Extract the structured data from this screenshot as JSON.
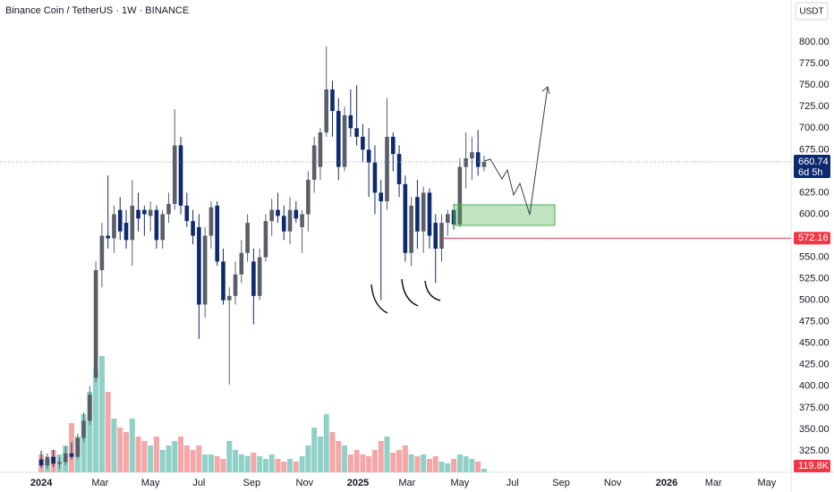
{
  "chart_data": {
    "type": "candlestick",
    "title": "Binance Coin / TetherUS · 1W · BINANCE",
    "currency": "USDT",
    "x": [
      0,
      1,
      2,
      3,
      4,
      5,
      6,
      7,
      8,
      9,
      10,
      11,
      12,
      13,
      14,
      15,
      16,
      17,
      18,
      19,
      20,
      21,
      22,
      23,
      24,
      25,
      26,
      27,
      28,
      29,
      30,
      31,
      32,
      33,
      34,
      35,
      36,
      37,
      38,
      39,
      40,
      41,
      42,
      43,
      44,
      45,
      46,
      47,
      48,
      49,
      50,
      51,
      52,
      53,
      54,
      55,
      56,
      57,
      58,
      59,
      60,
      61,
      62,
      63,
      64,
      65,
      66,
      67,
      68,
      69,
      70,
      71,
      72,
      73
    ],
    "open": [
      315,
      308,
      318,
      310,
      312,
      322,
      318,
      340,
      360,
      410,
      535,
      575,
      572,
      605,
      590,
      570,
      605,
      605,
      598,
      605,
      570,
      600,
      612,
      680,
      610,
      592,
      585,
      495,
      575,
      610,
      545,
      500,
      505,
      530,
      555,
      545,
      505,
      550,
      592,
      605,
      598,
      580,
      605,
      585,
      600,
      640,
      655,
      695,
      745,
      720,
      655,
      715,
      700,
      690,
      675,
      660,
      625,
      615,
      690,
      670,
      635,
      555,
      620,
      580,
      625,
      590,
      560,
      590,
      605,
      588,
      655,
      665,
      672,
      655
    ],
    "high": [
      325,
      322,
      326,
      318,
      330,
      335,
      345,
      370,
      400,
      545,
      590,
      645,
      610,
      620,
      605,
      640,
      625,
      610,
      615,
      610,
      605,
      625,
      722,
      690,
      625,
      605,
      600,
      585,
      615,
      615,
      560,
      515,
      545,
      570,
      600,
      560,
      560,
      600,
      618,
      625,
      610,
      620,
      615,
      605,
      650,
      690,
      700,
      795,
      755,
      735,
      725,
      745,
      750,
      705,
      700,
      680,
      640,
      735,
      695,
      680,
      645,
      620,
      640,
      632,
      630,
      600,
      600,
      605,
      612,
      665,
      695,
      690,
      698,
      668
    ],
    "low": [
      305,
      304,
      306,
      304,
      308,
      315,
      316,
      335,
      355,
      405,
      515,
      560,
      555,
      570,
      560,
      540,
      580,
      575,
      580,
      560,
      560,
      590,
      605,
      600,
      585,
      565,
      455,
      480,
      560,
      540,
      495,
      402,
      495,
      520,
      545,
      472,
      500,
      545,
      575,
      590,
      570,
      565,
      590,
      555,
      580,
      625,
      640,
      690,
      690,
      640,
      650,
      690,
      680,
      660,
      620,
      600,
      500,
      605,
      650,
      620,
      545,
      540,
      560,
      555,
      560,
      520,
      545,
      575,
      582,
      585,
      630,
      640,
      645,
      650
    ],
    "close": [
      308,
      318,
      310,
      312,
      322,
      318,
      340,
      360,
      390,
      535,
      575,
      572,
      600,
      580,
      570,
      610,
      595,
      600,
      605,
      570,
      600,
      612,
      680,
      610,
      592,
      575,
      495,
      575,
      608,
      545,
      500,
      505,
      530,
      555,
      590,
      505,
      550,
      592,
      605,
      598,
      580,
      605,
      595,
      600,
      640,
      680,
      695,
      745,
      720,
      655,
      715,
      700,
      690,
      675,
      660,
      625,
      615,
      690,
      670,
      635,
      555,
      610,
      580,
      625,
      575,
      560,
      590,
      600,
      588,
      655,
      665,
      672,
      655,
      660.74
    ],
    "volume": [
      600000,
      450000,
      750000,
      600000,
      900000,
      1650000,
      1200000,
      1950000,
      2700000,
      3450000,
      3900000,
      2700000,
      1800000,
      1500000,
      1350000,
      1800000,
      1200000,
      1050000,
      900000,
      1200000,
      750000,
      900000,
      1050000,
      1200000,
      900000,
      750000,
      900000,
      600000,
      600000,
      540000,
      450000,
      1050000,
      750000,
      600000,
      540000,
      660000,
      540000,
      450000,
      600000,
      450000,
      360000,
      450000,
      360000,
      540000,
      900000,
      1500000,
      1200000,
      1950000,
      1350000,
      1050000,
      900000,
      600000,
      750000,
      600000,
      540000,
      750000,
      1050000,
      1200000,
      660000,
      750000,
      900000,
      600000,
      540000,
      600000,
      450000,
      540000,
      360000,
      300000,
      450000,
      600000,
      540000,
      450000,
      360000,
      119800
    ],
    "volume_label": "119.8K",
    "vlim": [
      0,
      4050000
    ],
    "up_color": "#5b5e68",
    "down_color": "#0e2a6e",
    "volume_up_color": "#8fd1c7",
    "volume_down_color": "#f5a6a6",
    "xlim": [
      -6.8,
      123.6
    ],
    "xticks": [
      {
        "value": 0,
        "label": "2024"
      },
      {
        "value": 9.7,
        "label": "Mar"
      },
      {
        "value": 18,
        "label": "May"
      },
      {
        "value": 26,
        "label": "Jul"
      },
      {
        "value": 34.7,
        "label": "Sep"
      },
      {
        "value": 43.4,
        "label": "Nov"
      },
      {
        "value": 52.2,
        "label": "2025"
      },
      {
        "value": 60.3,
        "label": "Mar"
      },
      {
        "value": 69,
        "label": "May"
      },
      {
        "value": 77.7,
        "label": "Jul"
      },
      {
        "value": 85.7,
        "label": "Sep"
      },
      {
        "value": 94.2,
        "label": "Nov"
      },
      {
        "value": 103.1,
        "label": "2026"
      },
      {
        "value": 110.8,
        "label": "Mar"
      },
      {
        "value": 119.6,
        "label": "May"
      }
    ],
    "ylim": [
      300,
      849
    ],
    "yticks": [
      {
        "value": 325,
        "label": "325.00"
      },
      {
        "value": 350,
        "label": "350.00"
      },
      {
        "value": 375,
        "label": "375.00"
      },
      {
        "value": 400,
        "label": "400.00"
      },
      {
        "value": 425,
        "label": "425.00"
      },
      {
        "value": 450,
        "label": "450.00"
      },
      {
        "value": 475,
        "label": "475.00"
      },
      {
        "value": 500,
        "label": "500.00"
      },
      {
        "value": 525,
        "label": "525.00"
      },
      {
        "value": 550,
        "label": "550.00"
      },
      {
        "value": 600,
        "label": "600.00"
      },
      {
        "value": 625,
        "label": "625.00"
      },
      {
        "value": 675,
        "label": "675.00"
      },
      {
        "value": 700,
        "label": "700.00"
      },
      {
        "value": 725,
        "label": "725.00"
      },
      {
        "value": 750,
        "label": "750.00"
      },
      {
        "value": 775,
        "label": "775.00"
      },
      {
        "value": 800,
        "label": "800.00"
      }
    ],
    "last_price": 660.74,
    "countdown": "6d 5h",
    "level": 572.16,
    "grid": false
  }
}
